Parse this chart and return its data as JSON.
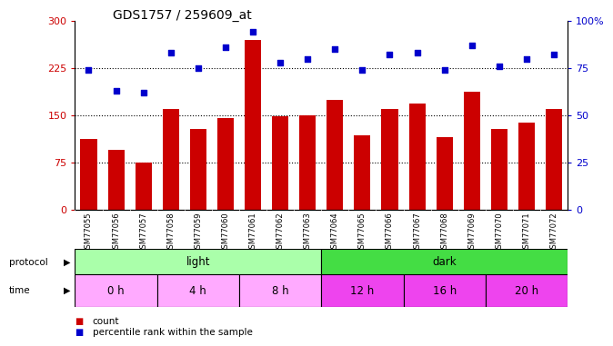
{
  "title": "GDS1757 / 259609_at",
  "samples": [
    "GSM77055",
    "GSM77056",
    "GSM77057",
    "GSM77058",
    "GSM77059",
    "GSM77060",
    "GSM77061",
    "GSM77062",
    "GSM77063",
    "GSM77064",
    "GSM77065",
    "GSM77066",
    "GSM77067",
    "GSM77068",
    "GSM77069",
    "GSM77070",
    "GSM77071",
    "GSM77072"
  ],
  "count_values": [
    113,
    95,
    75,
    160,
    128,
    145,
    270,
    148,
    150,
    175,
    118,
    160,
    168,
    115,
    188,
    128,
    138,
    160
  ],
  "percentile_values": [
    74,
    63,
    62,
    83,
    75,
    86,
    94,
    78,
    80,
    85,
    74,
    82,
    83,
    74,
    87,
    76,
    80,
    82
  ],
  "bar_color": "#cc0000",
  "dot_color": "#0000cc",
  "left_ylim": [
    0,
    300
  ],
  "right_ylim": [
    0,
    100
  ],
  "left_yticks": [
    0,
    75,
    150,
    225,
    300
  ],
  "right_yticks": [
    0,
    25,
    50,
    75,
    100
  ],
  "right_yticklabels": [
    "0",
    "25",
    "50",
    "75",
    "100%"
  ],
  "protocol_colors": [
    "#aaffaa",
    "#44dd44"
  ],
  "time_labels": [
    "0 h",
    "4 h",
    "8 h",
    "12 h",
    "16 h",
    "20 h"
  ],
  "time_ranges": [
    [
      0,
      3
    ],
    [
      3,
      6
    ],
    [
      6,
      9
    ],
    [
      9,
      12
    ],
    [
      12,
      15
    ],
    [
      15,
      18
    ]
  ],
  "time_color_light": "#ffaaff",
  "time_color_dark": "#ee44ee",
  "legend_count_label": "count",
  "legend_percentile_label": "percentile rank within the sample",
  "title_fontsize": 10,
  "axis_label_color_left": "#cc0000",
  "axis_label_color_right": "#0000cc",
  "background_color": "#ffffff",
  "plot_bg_color": "#ffffff",
  "xtick_bg_color": "#cccccc"
}
